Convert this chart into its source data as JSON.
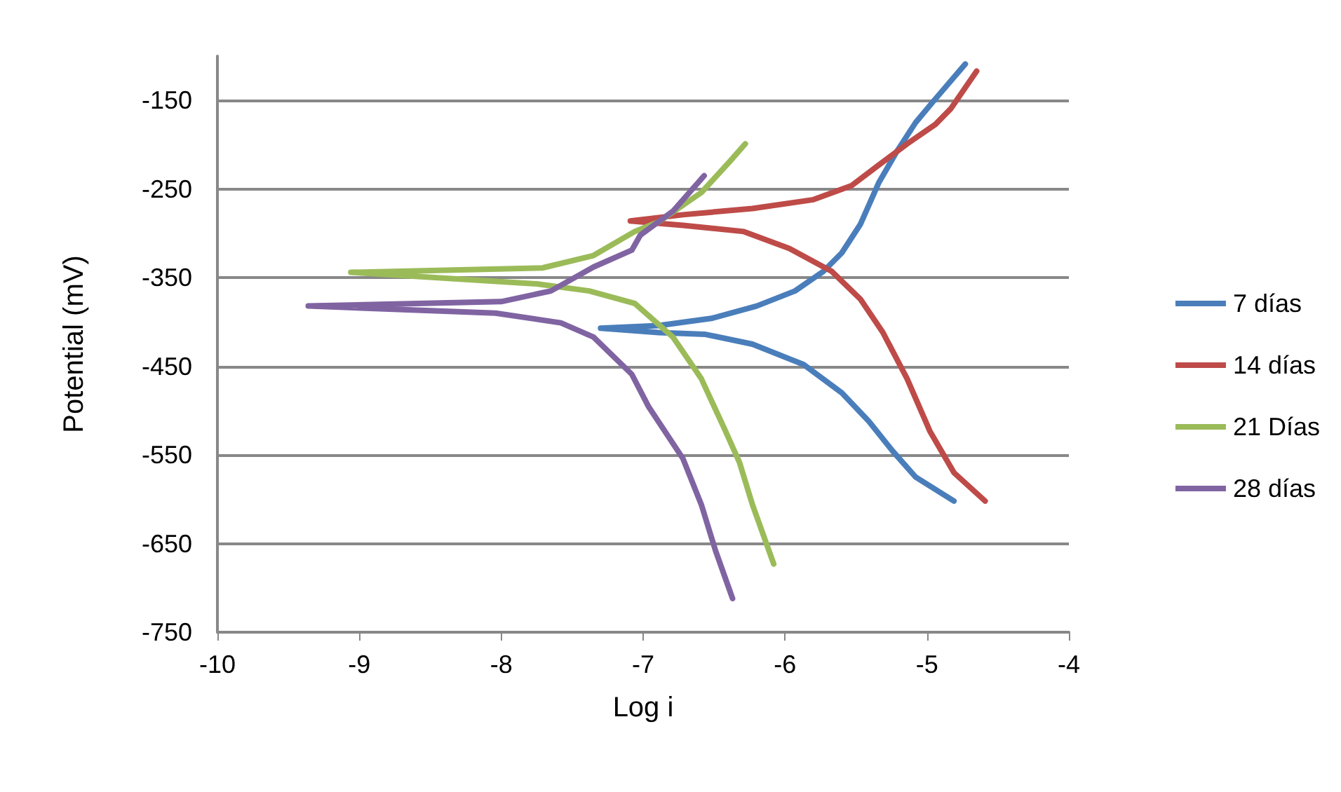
{
  "chart_data": {
    "type": "line",
    "xlabel": "Log i",
    "ylabel": "Potential (mV)",
    "xlim": [
      -10,
      -4
    ],
    "xticks": [
      -10,
      -9,
      -8,
      -7,
      -6,
      -5,
      -4
    ],
    "ylim": [
      -750,
      -100
    ],
    "yticks": [
      -750,
      -650,
      -550,
      -450,
      -350,
      -250,
      -150
    ],
    "grid": "y",
    "legend": "right",
    "marker": "none",
    "line_style": "solid",
    "series": [
      {
        "name": "7 días",
        "color": "#4a7ebb",
        "x": [
          -4.73,
          -4.96,
          -5.08,
          -5.21,
          -5.34,
          -5.47,
          -5.6,
          -5.73,
          -5.93,
          -6.2,
          -6.52,
          -6.89,
          -7.3,
          -6.89,
          -6.56,
          -6.23,
          -5.87,
          -5.6,
          -5.41,
          -5.24,
          -5.08,
          -4.81
        ],
        "values": [
          -109,
          -152,
          -175,
          -207,
          -243,
          -290,
          -322,
          -343,
          -365,
          -382,
          -396,
          -404,
          -407,
          -412,
          -414,
          -425,
          -448,
          -480,
          -512,
          -546,
          -575,
          -602
        ]
      },
      {
        "name": "14 días",
        "color": "#be4b48",
        "x": [
          -4.65,
          -4.83,
          -4.94,
          -5.14,
          -5.34,
          -5.53,
          -5.8,
          -6.23,
          -6.72,
          -7.09,
          -6.72,
          -6.29,
          -5.97,
          -5.67,
          -5.47,
          -5.31,
          -5.14,
          -4.98,
          -4.81,
          -4.59
        ],
        "values": [
          -117,
          -159,
          -177,
          -199,
          -223,
          -246,
          -262,
          -272,
          -279,
          -286,
          -291,
          -298,
          -317,
          -343,
          -374,
          -412,
          -464,
          -523,
          -570,
          -602
        ]
      },
      {
        "name": "21 Días",
        "color": "#9bbb59",
        "x": [
          -6.28,
          -6.39,
          -6.59,
          -6.89,
          -7.06,
          -7.35,
          -7.71,
          -9.06,
          -7.75,
          -7.38,
          -7.06,
          -6.79,
          -6.59,
          -6.42,
          -6.32,
          -6.23,
          -6.08
        ],
        "values": [
          -199,
          -219,
          -254,
          -287,
          -298,
          -325,
          -339,
          -344,
          -357,
          -365,
          -379,
          -417,
          -464,
          -523,
          -559,
          -606,
          -673
        ]
      },
      {
        "name": "28 días",
        "color": "#8064a2",
        "x": [
          -6.57,
          -6.79,
          -7.02,
          -7.08,
          -7.35,
          -7.65,
          -8.0,
          -9.36,
          -8.04,
          -7.58,
          -7.35,
          -7.08,
          -6.96,
          -6.72,
          -6.59,
          -6.49,
          -6.37
        ],
        "values": [
          -235,
          -275,
          -302,
          -319,
          -338,
          -365,
          -377,
          -382,
          -390,
          -401,
          -417,
          -459,
          -496,
          -554,
          -606,
          -658,
          -712
        ]
      }
    ]
  }
}
